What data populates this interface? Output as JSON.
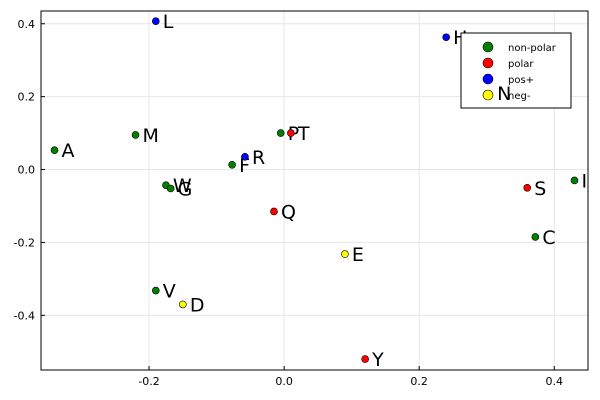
{
  "chart_data": {
    "type": "scatter",
    "title": "",
    "xlabel": "",
    "ylabel": "",
    "xlim": [
      -0.36,
      0.45
    ],
    "ylim": [
      -0.55,
      0.435
    ],
    "xticks": [
      -0.2,
      0.0,
      0.2,
      0.4
    ],
    "xtick_labels": [
      "-0.2",
      "0.0",
      "0.2",
      "0.4"
    ],
    "yticks": [
      -0.4,
      -0.2,
      0.0,
      0.2,
      0.4
    ],
    "ytick_labels": [
      "-0.4",
      "-0.2",
      "0.0",
      "0.2",
      "0.4"
    ],
    "grid": true,
    "legend_position": "top-right",
    "series": [
      {
        "name": "non-polar",
        "color": "#008000",
        "points": [
          {
            "label": "A",
            "x": -0.34,
            "y": 0.053
          },
          {
            "label": "M",
            "x": -0.22,
            "y": 0.095
          },
          {
            "label": "W",
            "x": -0.175,
            "y": -0.043
          },
          {
            "label": "G",
            "x": -0.168,
            "y": -0.052
          },
          {
            "label": "F",
            "x": -0.077,
            "y": 0.013
          },
          {
            "label": "P",
            "x": -0.005,
            "y": 0.1
          },
          {
            "label": "V",
            "x": -0.19,
            "y": -0.332
          },
          {
            "label": "C",
            "x": 0.372,
            "y": -0.185
          },
          {
            "label": "I",
            "x": 0.43,
            "y": -0.03
          }
        ]
      },
      {
        "name": "polar",
        "color": "#ff0000",
        "points": [
          {
            "label": "T",
            "x": 0.01,
            "y": 0.1
          },
          {
            "label": "Q",
            "x": -0.015,
            "y": -0.115
          },
          {
            "label": "S",
            "x": 0.36,
            "y": -0.05
          },
          {
            "label": "Y",
            "x": 0.12,
            "y": -0.52
          }
        ]
      },
      {
        "name": "pos+",
        "color": "#0000ff",
        "points": [
          {
            "label": "L",
            "x": -0.19,
            "y": 0.407
          },
          {
            "label": "H",
            "x": 0.24,
            "y": 0.363
          },
          {
            "label": "R",
            "x": -0.058,
            "y": 0.035
          }
        ]
      },
      {
        "name": "neg-",
        "color": "#ffff00",
        "points": [
          {
            "label": "N",
            "x": 0.305,
            "y": 0.21
          },
          {
            "label": "E",
            "x": 0.09,
            "y": -0.232
          },
          {
            "label": "D",
            "x": -0.15,
            "y": -0.37
          }
        ]
      }
    ]
  }
}
